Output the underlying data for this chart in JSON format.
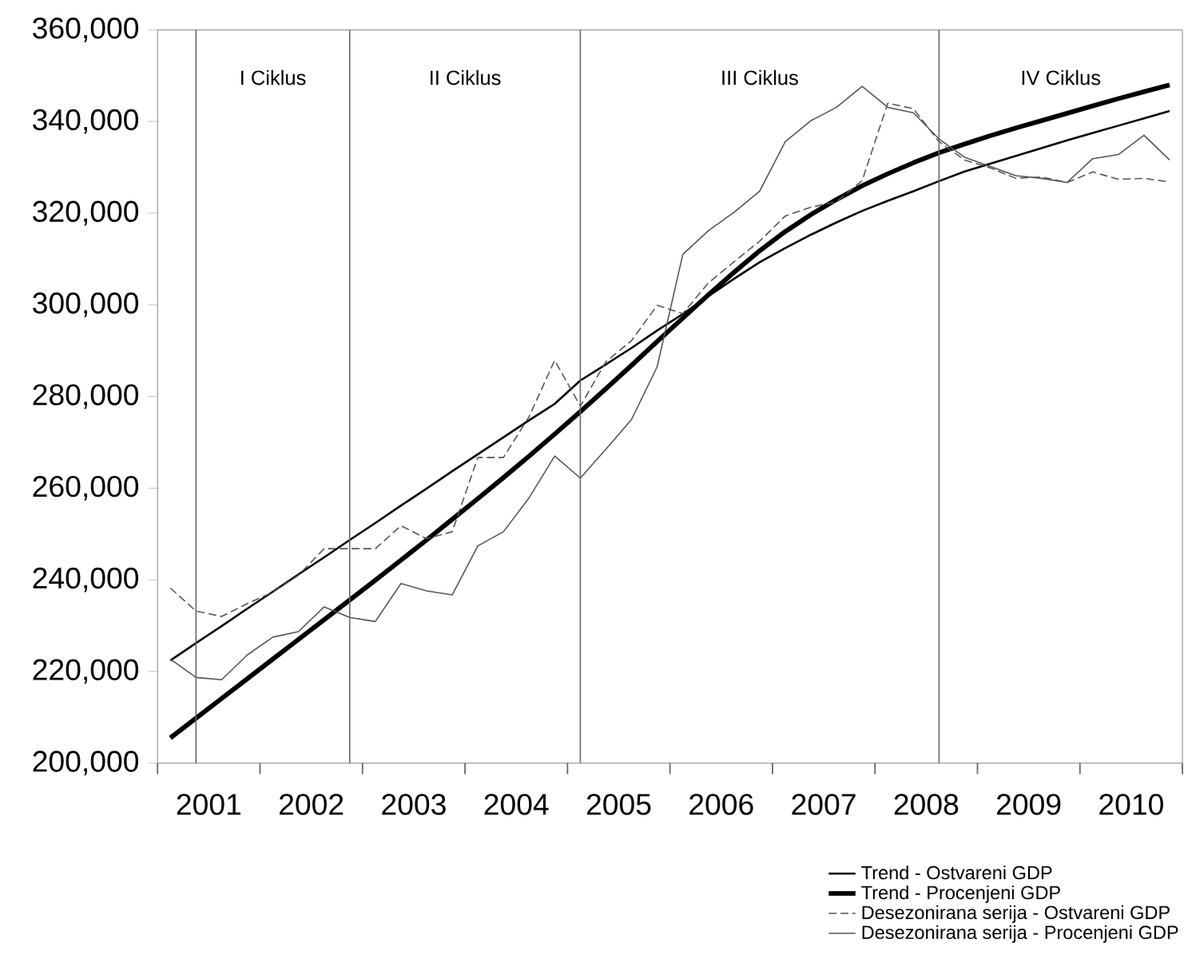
{
  "chart_data": {
    "type": "line",
    "x": [
      2001.125,
      2001.375,
      2001.625,
      2001.875,
      2002.125,
      2002.375,
      2002.625,
      2002.875,
      2003.125,
      2003.375,
      2003.625,
      2003.875,
      2004.125,
      2004.375,
      2004.625,
      2004.875,
      2005.125,
      2005.375,
      2005.625,
      2005.875,
      2006.125,
      2006.375,
      2006.625,
      2006.875,
      2007.125,
      2007.375,
      2007.625,
      2007.875,
      2008.125,
      2008.375,
      2008.625,
      2008.875,
      2009.125,
      2009.375,
      2009.625,
      2009.875,
      2010.125,
      2010.375,
      2010.625,
      2010.875
    ],
    "series": [
      {
        "name": "Trend - Ostvareni GDP",
        "color": "#000000",
        "line_style": "solid",
        "values": [
          222400,
          226200,
          229900,
          233700,
          237400,
          241200,
          244900,
          248700,
          252400,
          256200,
          259900,
          263700,
          267400,
          271100,
          274800,
          278400,
          283500,
          287000,
          290600,
          294400,
          298000,
          301900,
          305700,
          309300,
          312400,
          315300,
          318000,
          320500,
          322700,
          324800,
          327000,
          329100,
          330800,
          332500,
          334200,
          335900,
          337500,
          339100,
          340700,
          342300
        ]
      },
      {
        "name": "Trend - Procenjeni GDP",
        "color": "#000000",
        "line_style": "solid",
        "values": [
          205500,
          209800,
          214100,
          218400,
          222700,
          227000,
          231300,
          235600,
          239900,
          244300,
          248700,
          253200,
          257700,
          262300,
          267000,
          271800,
          276700,
          281700,
          286800,
          292000,
          297100,
          302200,
          307100,
          311800,
          316000,
          319700,
          323000,
          326000,
          328600,
          331000,
          333200,
          335100,
          336900,
          338600,
          340200,
          341800,
          343400,
          345000,
          346500,
          348000
        ]
      },
      {
        "name": "Desezonirana serija - Ostvareni GDP",
        "color": "#555555",
        "line_style": "dashed",
        "values": [
          238200,
          233200,
          232000,
          234800,
          237300,
          241000,
          246800,
          246800,
          246800,
          251800,
          249000,
          250500,
          266700,
          266700,
          275600,
          287900,
          277900,
          287600,
          292200,
          299900,
          298100,
          304800,
          309400,
          313900,
          319400,
          321300,
          322500,
          327100,
          344000,
          342800,
          335600,
          331600,
          329900,
          327600,
          327900,
          326700,
          329000,
          327400,
          327600,
          326800
        ]
      },
      {
        "name": "Desezonirana serija - Procenjeni GDP",
        "color": "#555555",
        "line_style": "solid",
        "values": [
          222700,
          218700,
          218200,
          223600,
          227500,
          228700,
          234100,
          231800,
          230900,
          239200,
          237600,
          236700,
          247400,
          250500,
          257900,
          267000,
          262200,
          268500,
          275000,
          286500,
          311000,
          316200,
          320200,
          324800,
          335600,
          340200,
          343100,
          347700,
          343100,
          341900,
          336200,
          332200,
          330200,
          328200,
          327600,
          326700,
          331900,
          332800,
          337000,
          331600
        ]
      }
    ],
    "xlim": [
      2001,
      2011
    ],
    "xticks": [
      {
        "value": 2001,
        "label": null
      },
      {
        "value": 2001.5,
        "label": "2001"
      },
      {
        "value": 2002,
        "label": null
      },
      {
        "value": 2002.5,
        "label": "2002"
      },
      {
        "value": 2003,
        "label": null
      },
      {
        "value": 2003.5,
        "label": "2003"
      },
      {
        "value": 2004,
        "label": null
      },
      {
        "value": 2004.5,
        "label": "2004"
      },
      {
        "value": 2005,
        "label": null
      },
      {
        "value": 2005.5,
        "label": "2005"
      },
      {
        "value": 2006,
        "label": null
      },
      {
        "value": 2006.5,
        "label": "2006"
      },
      {
        "value": 2007,
        "label": null
      },
      {
        "value": 2007.5,
        "label": "2007"
      },
      {
        "value": 2008,
        "label": null
      },
      {
        "value": 2008.5,
        "label": "2008"
      },
      {
        "value": 2009,
        "label": null
      },
      {
        "value": 2009.5,
        "label": "2009"
      },
      {
        "value": 2010,
        "label": null
      },
      {
        "value": 2010.5,
        "label": "2010"
      },
      {
        "value": 2011,
        "label": null
      }
    ],
    "ylim": [
      200000,
      360000
    ],
    "yticks": [
      {
        "value": 200000,
        "label": "200,000"
      },
      {
        "value": 220000,
        "label": "220,000"
      },
      {
        "value": 240000,
        "label": "240,000"
      },
      {
        "value": 260000,
        "label": "260,000"
      },
      {
        "value": 280000,
        "label": "280,000"
      },
      {
        "value": 300000,
        "label": "300,000"
      },
      {
        "value": 320000,
        "label": "320,000"
      },
      {
        "value": 340000,
        "label": "340,000"
      },
      {
        "value": 360000,
        "label": "360,000"
      }
    ],
    "ref_lines": [
      {
        "axis": "x",
        "value": 2001.375
      },
      {
        "axis": "x",
        "value": 2002.875
      },
      {
        "axis": "x",
        "value": 2005.125
      },
      {
        "axis": "x",
        "value": 2008.625
      }
    ],
    "annotations": [
      "I Ciklus",
      "II Ciklus",
      "III Ciklus",
      "IV Ciklus"
    ],
    "legend": "bottom right"
  }
}
